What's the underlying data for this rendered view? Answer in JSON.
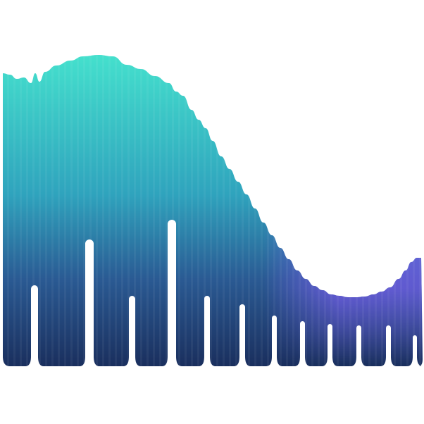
{
  "artwork": {
    "subject": "wave-logo-mark",
    "colors": {
      "background": "#ffffff",
      "top_teal": "#44e0cd",
      "mid_teal": "#2fa3bd",
      "violet_accent": "#7b5df0",
      "navy_base": "#1a2f5e"
    }
  }
}
